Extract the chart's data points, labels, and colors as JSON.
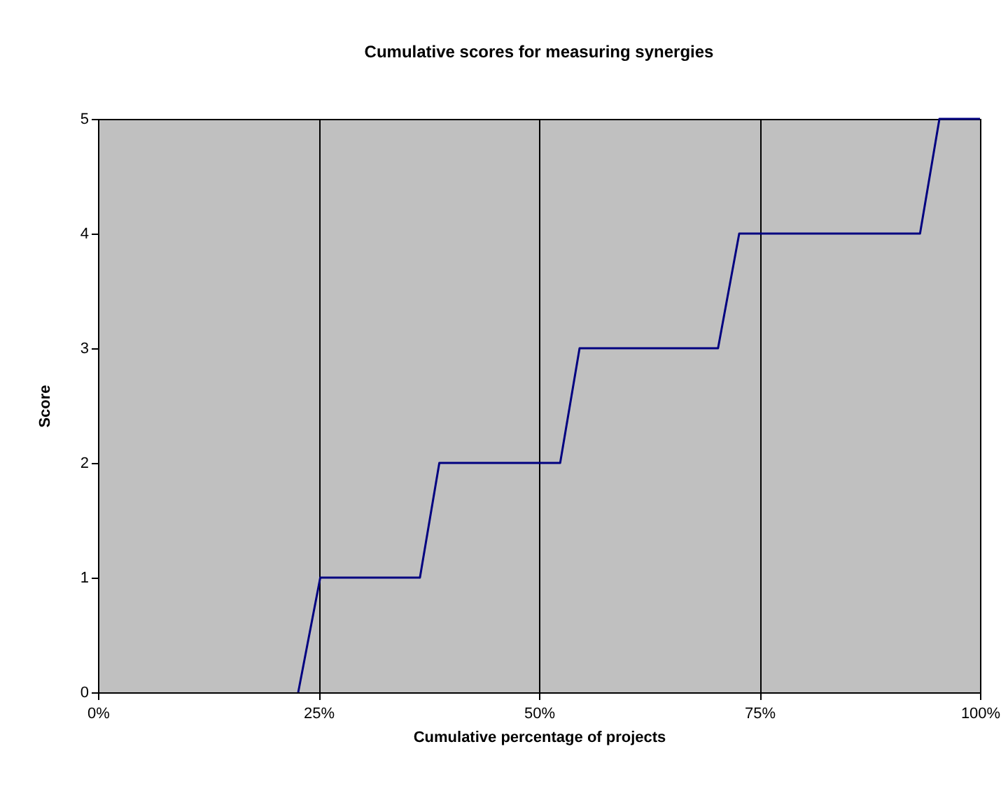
{
  "chart_data": {
    "type": "line",
    "title": "Cumulative scores for measuring synergies",
    "xlabel": "Cumulative percentage of projects",
    "ylabel": "Score",
    "series": [
      {
        "color": "#000080",
        "x": [
          22.7,
          25.2,
          36.5,
          38.7,
          52.4,
          54.6,
          70.3,
          72.7,
          93.2,
          95.4,
          100
        ],
        "values": [
          0,
          1,
          1,
          2,
          2,
          3,
          3,
          4,
          4,
          5,
          5
        ]
      }
    ],
    "xlim": [
      0,
      100
    ],
    "xticks": [
      {
        "value": 0,
        "label": "0%"
      },
      {
        "value": 25,
        "label": "25%"
      },
      {
        "value": 50,
        "label": "50%"
      },
      {
        "value": 75,
        "label": "75%"
      },
      {
        "value": 100,
        "label": "100%"
      }
    ],
    "ylim": [
      0,
      5
    ],
    "yticks": [
      0,
      1,
      2,
      3,
      4,
      5
    ],
    "grid": "x",
    "marker": "none",
    "line_style": "solid"
  }
}
